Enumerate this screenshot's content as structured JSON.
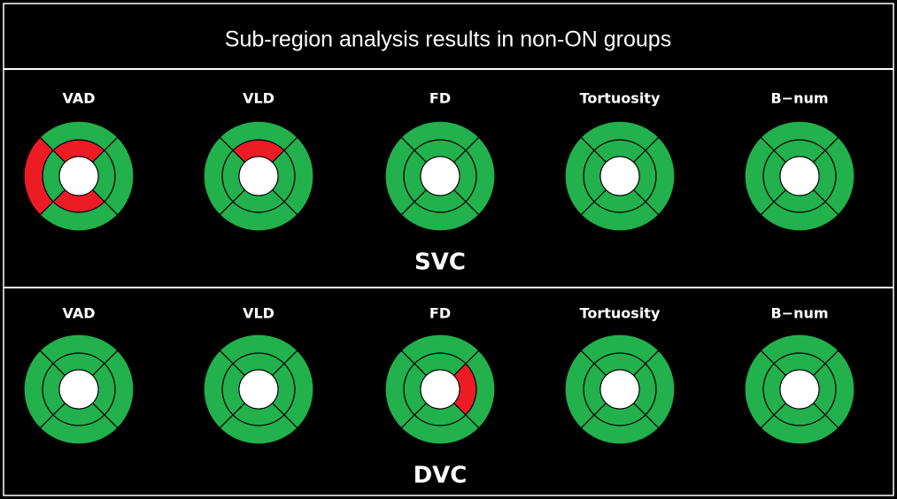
{
  "title": "Sub-region analysis results in non-ON groups",
  "significant_color": "#ed1c24",
  "normal_color": "#22b14c",
  "panels": [
    {
      "name": "SVC",
      "diagrams": [
        {
          "label": "VAD",
          "inner": [
            true,
            false,
            true,
            false
          ],
          "outer": [
            false,
            false,
            false,
            true
          ]
        },
        {
          "label": "VLD",
          "inner": [
            true,
            false,
            false,
            false
          ],
          "outer": [
            false,
            false,
            false,
            false
          ]
        },
        {
          "label": "FD",
          "inner": [
            false,
            false,
            false,
            false
          ],
          "outer": [
            false,
            false,
            false,
            false
          ]
        },
        {
          "label": "Tortuosity",
          "inner": [
            false,
            false,
            false,
            false
          ],
          "outer": [
            false,
            false,
            false,
            false
          ]
        },
        {
          "label": "B−num",
          "inner": [
            false,
            false,
            false,
            false
          ],
          "outer": [
            false,
            false,
            false,
            false
          ]
        }
      ]
    },
    {
      "name": "DVC",
      "diagrams": [
        {
          "label": "VAD",
          "inner": [
            false,
            false,
            false,
            false
          ],
          "outer": [
            false,
            false,
            false,
            false
          ]
        },
        {
          "label": "VLD",
          "inner": [
            false,
            false,
            false,
            false
          ],
          "outer": [
            false,
            false,
            false,
            false
          ]
        },
        {
          "label": "FD",
          "inner": [
            false,
            true,
            false,
            false
          ],
          "outer": [
            false,
            false,
            false,
            false
          ]
        },
        {
          "label": "Tortuosity",
          "inner": [
            false,
            false,
            false,
            false
          ],
          "outer": [
            false,
            false,
            false,
            false
          ]
        },
        {
          "label": "B−num",
          "inner": [
            false,
            false,
            false,
            false
          ],
          "outer": [
            false,
            false,
            false,
            false
          ]
        }
      ]
    }
  ]
}
